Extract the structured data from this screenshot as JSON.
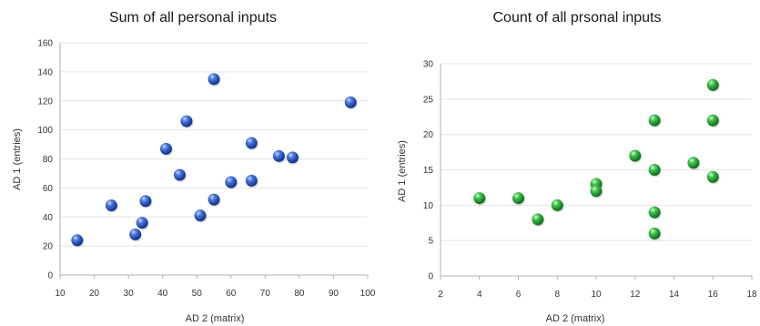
{
  "chart_data": [
    {
      "type": "scatter",
      "title": "Sum of all personal inputs",
      "xlabel": "AD 2 (matrix)",
      "ylabel": "AD 1 (entries)",
      "xlim": [
        10,
        100
      ],
      "ylim": [
        0,
        160
      ],
      "xticks": [
        10,
        20,
        30,
        40,
        50,
        60,
        70,
        80,
        90,
        100
      ],
      "yticks": [
        0,
        20,
        40,
        60,
        80,
        100,
        120,
        140,
        160
      ],
      "grid": true,
      "color": "#2a5bc8",
      "x": [
        15,
        25,
        32,
        34,
        35,
        41,
        45,
        47,
        51,
        55,
        55,
        60,
        66,
        66,
        74,
        78,
        95
      ],
      "y": [
        24,
        48,
        28,
        36,
        51,
        87,
        69,
        106,
        41,
        52,
        135,
        64,
        65,
        91,
        82,
        81,
        119
      ]
    },
    {
      "type": "scatter",
      "title": "Count of all prsonal inputs",
      "xlabel": "AD 2 (matrix)",
      "ylabel": "AD 1 (entries)",
      "xlim": [
        2,
        18
      ],
      "ylim": [
        0,
        30
      ],
      "xticks": [
        2,
        4,
        6,
        8,
        10,
        12,
        14,
        16,
        18
      ],
      "yticks": [
        0,
        5,
        10,
        15,
        20,
        25,
        30
      ],
      "grid": true,
      "color": "#2ea83a",
      "x": [
        4,
        6,
        7,
        8,
        10,
        10,
        12,
        13,
        13,
        13,
        13,
        15,
        16,
        16,
        16
      ],
      "y": [
        11,
        11,
        8,
        10,
        13,
        12,
        17,
        22,
        15,
        9,
        6,
        16,
        27,
        22,
        14
      ]
    }
  ]
}
